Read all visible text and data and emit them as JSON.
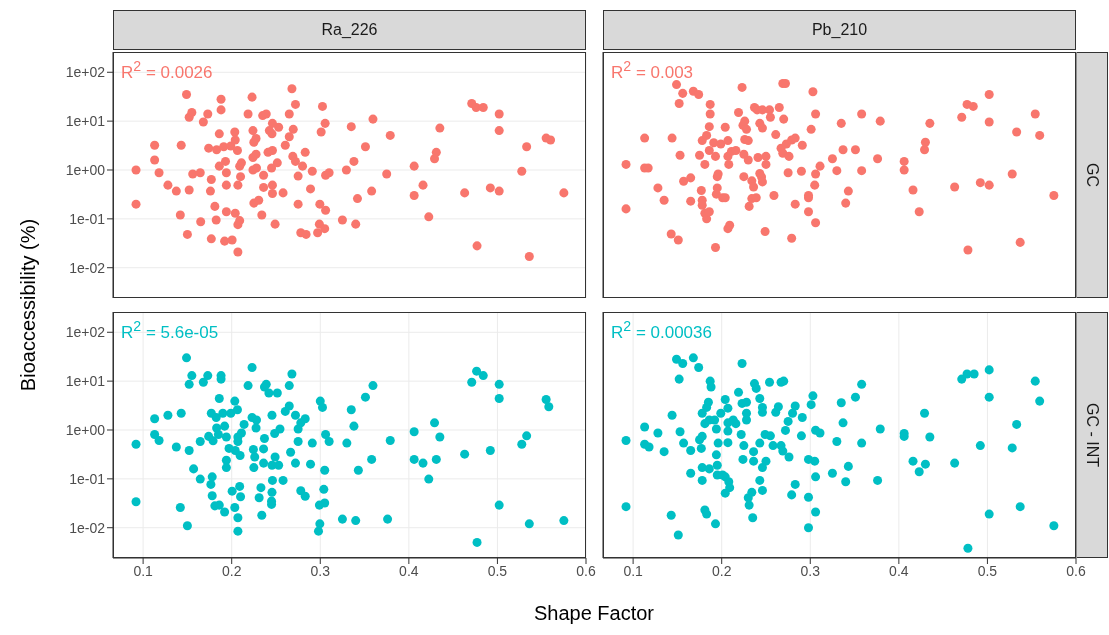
{
  "chart_data": [
    {
      "type": "scatter",
      "title": "Ra_226",
      "ylabel": "Bioaccessibility (%)",
      "annotations": [
        "R$^{2}$ = 0.0026"
      ],
      "color": "#f8766d",
      "marker": "circle",
      "grid": true,
      "log": "y",
      "tick_labels": "y",
      "xlim": [
        0.066,
        0.6
      ],
      "xticks": [
        0.1,
        0.2,
        0.3,
        0.4,
        0.5,
        0.6
      ],
      "ylim": [
        0.0024,
        260
      ],
      "yticks": [
        {
          "value": 0.01,
          "label": "1e-02"
        },
        {
          "value": 0.1,
          "label": "1e-01"
        },
        {
          "value": 1,
          "label": "1e+00"
        },
        {
          "value": 10,
          "label": "1e+01"
        },
        {
          "value": 100,
          "label": "1e+02"
        }
      ],
      "x": [
        0.092,
        0.092,
        0.113,
        0.113,
        0.118,
        0.128,
        0.1375,
        0.142,
        0.143,
        0.149,
        0.15,
        0.152,
        0.152,
        0.155,
        0.156,
        0.1645,
        0.165,
        0.168,
        0.173,
        0.174,
        0.177,
        0.176,
        0.177,
        0.181,
        0.1825,
        0.183,
        0.186,
        0.186,
        0.188,
        0.188,
        0.191,
        0.192,
        0.193,
        0.194,
        0.194,
        0.194,
        0.199,
        0.2005,
        0.2035,
        0.204,
        0.204,
        0.2065,
        0.207,
        0.207,
        0.207,
        0.209,
        0.209,
        0.21,
        0.211,
        0.2185,
        0.223,
        0.224,
        0.224,
        0.225,
        0.2275,
        0.224,
        0.2275,
        0.228,
        0.225,
        0.2305,
        0.234,
        0.235,
        0.236,
        0.236,
        0.239,
        0.241,
        0.2425,
        0.2455,
        0.246,
        0.246,
        0.245,
        0.246,
        0.246,
        0.249,
        0.253,
        0.2515,
        0.258,
        0.2605,
        0.265,
        0.265,
        0.268,
        0.2695,
        0.269,
        0.272,
        0.272,
        0.275,
        0.275,
        0.278,
        0.28,
        0.283,
        0.284,
        0.289,
        0.291,
        0.297,
        0.299,
        0.2995,
        0.301,
        0.3025,
        0.305,
        0.3055,
        0.306,
        0.306,
        0.31,
        0.325,
        0.3295,
        0.335,
        0.338,
        0.34,
        0.342,
        0.351,
        0.358,
        0.3595,
        0.375,
        0.379,
        0.406,
        0.406,
        0.416,
        0.4225,
        0.429,
        0.431,
        0.435,
        0.463,
        0.471,
        0.476,
        0.484,
        0.477,
        0.492,
        0.502,
        0.502,
        0.502,
        0.5275,
        0.533,
        0.536,
        0.555,
        0.56,
        0.575
      ],
      "values": [
        1.0,
        0.2,
        3.2,
        1.6,
        0.88,
        0.49,
        0.37,
        0.12,
        3.2,
        35,
        0.048,
        0.39,
        12,
        15,
        0.83,
        0.88,
        0.087,
        9.6,
        14,
        2.8,
        0.039,
        0.37,
        0.64,
        0.18,
        0.095,
        2.6,
        5.5,
        1.2,
        28,
        17,
        3.0,
        0.035,
        1.5,
        0.88,
        0.49,
        0.14,
        3.1,
        0.037,
        6.0,
        4.1,
        0.13,
        2.5,
        0.49,
        0.021,
        0.076,
        0.092,
        1.2,
        0.73,
        1.4,
        14,
        31,
        1.0,
        6.4,
        3.7,
        4.4,
        1.8,
        2.1,
        1.1,
        0.21,
        0.24,
        0.12,
        13,
        0.78,
        0.44,
        14,
        2.3,
        6.4,
        5.5,
        2.5,
        9.0,
        1.1,
        0.49,
        0.33,
        0.078,
        7.5,
        1.4,
        0.34,
        3.2,
        14,
        4.8,
        46,
        6.8,
        1.9,
        22,
        1.5,
        0.75,
        0.2,
        0.052,
        1.2,
        2.3,
        0.048,
        0.41,
        0.94,
        0.052,
        0.078,
        0.2,
        6.0,
        20,
        0.063,
        9.0,
        0.15,
        0.78,
        0.88,
        0.095,
        1.0,
        7.7,
        1.5,
        0.078,
        0.26,
        3.0,
        0.37,
        11,
        0.83,
        5.1,
        1.2,
        0.3,
        0.49,
        0.11,
        1.7,
        2.3,
        7.2,
        0.34,
        23,
        19,
        19,
        0.028,
        0.43,
        14,
        6.4,
        0.37,
        0.94,
        3.0,
        0.017,
        4.5,
        4.1,
        0.34
      ]
    },
    {
      "type": "scatter",
      "title": "Pb_210",
      "y2label": "GC",
      "annotations": [
        "R$^{2}$ = 0.003"
      ],
      "color": "#f8766d",
      "marker": "circle",
      "grid": true,
      "log": "y",
      "tick_labels": false,
      "xlim": [
        0.066,
        0.6
      ],
      "xticks": [
        0.1,
        0.2,
        0.3,
        0.4,
        0.5,
        0.6
      ],
      "ylim": [
        0.0024,
        260
      ],
      "yticks": [
        {
          "value": 0.01,
          "label": null
        },
        {
          "value": 0.1,
          "label": null
        },
        {
          "value": 1,
          "label": null
        },
        {
          "value": 10,
          "label": null
        },
        {
          "value": 100,
          "label": null
        }
      ],
      "x": [
        0.092,
        0.092,
        0.113,
        0.113,
        0.117,
        0.128,
        0.135,
        0.143,
        0.144,
        0.149,
        0.152,
        0.151,
        0.153,
        0.156,
        0.157,
        0.165,
        0.165,
        0.168,
        0.174,
        0.175,
        0.177,
        0.178,
        0.178,
        0.178,
        0.181,
        0.181,
        0.183,
        0.186,
        0.186,
        0.187,
        0.187,
        0.186,
        0.183,
        0.191,
        0.193,
        0.193,
        0.195,
        0.195,
        0.196,
        0.194,
        0.199,
        0.201,
        0.204,
        0.204,
        0.207,
        0.207,
        0.208,
        0.207,
        0.209,
        0.211,
        0.216,
        0.219,
        0.223,
        0.224,
        0.225,
        0.225,
        0.226,
        0.228,
        0.226,
        0.23,
        0.23,
        0.231,
        0.234,
        0.234,
        0.236,
        0.237,
        0.239,
        0.24,
        0.243,
        0.246,
        0.246,
        0.243,
        0.245,
        0.246,
        0.241,
        0.25,
        0.25,
        0.249,
        0.254,
        0.255,
        0.259,
        0.261,
        0.265,
        0.267,
        0.269,
        0.272,
        0.27,
        0.269,
        0.273,
        0.276,
        0.275,
        0.279,
        0.279,
        0.283,
        0.283,
        0.29,
        0.291,
        0.298,
        0.298,
        0.298,
        0.301,
        0.303,
        0.306,
        0.306,
        0.305,
        0.306,
        0.311,
        0.325,
        0.33,
        0.335,
        0.337,
        0.34,
        0.343,
        0.351,
        0.358,
        0.358,
        0.376,
        0.379,
        0.406,
        0.406,
        0.416,
        0.423,
        0.429,
        0.43,
        0.435,
        0.463,
        0.471,
        0.477,
        0.484,
        0.478,
        0.492,
        0.502,
        0.502,
        0.502,
        0.528,
        0.533,
        0.537,
        0.554,
        0.559,
        0.575
      ],
      "values": [
        1.3,
        0.16,
        4.5,
        1.1,
        1.1,
        0.43,
        0.24,
        0.049,
        4.5,
        56,
        23,
        0.037,
        2.0,
        37,
        0.59,
        0.69,
        0.23,
        41,
        35,
        2.0,
        0.38,
        4.0,
        0.24,
        0.19,
        1.3,
        0.13,
        0.1,
        0.14,
        7.7,
        22,
        14,
        2.5,
        5.1,
        3.6,
        1.9,
        0.026,
        0.43,
        0.73,
        0.83,
        0.32,
        3.4,
        0.27,
        0.27,
        7.5,
        4.0,
        1.9,
        1.3,
        0.063,
        0.074,
        2.4,
        2.5,
        15,
        49,
        8.2,
        2.1,
        0.73,
        10,
        6.8,
        4.2,
        4.0,
        1.6,
        0.18,
        0.26,
        0.6,
        0.45,
        19,
        0.27,
        17,
        9.0,
        7.2,
        17,
        0.85,
        0.72,
        0.57,
        1.8,
        1.9,
        1.3,
        0.055,
        17,
        12,
        0.3,
        5.3,
        19,
        2.8,
        59,
        59,
        11,
        2.2,
        3.4,
        1.9,
        0.88,
        0.04,
        4.1,
        4.5,
        0.2,
        0.94,
        3.2,
        0.14,
        0.27,
        0.3,
        6.8,
        40,
        14,
        0.83,
        0.49,
        0.083,
        1.2,
        1.7,
        0.97,
        9.0,
        2.6,
        0.21,
        0.37,
        2.6,
        14,
        0.97,
        1.7,
        10,
        1.5,
        1.0,
        0.39,
        0.14,
        2.6,
        3.7,
        9.0,
        0.45,
        12,
        22,
        20,
        0.023,
        0.55,
        35,
        9.6,
        0.49,
        0.83,
        6.0,
        0.033,
        14,
        5.1,
        0.3
      ]
    },
    {
      "type": "scatter",
      "xlabel": "Shape Factor",
      "annotations": [
        "R$^{2}$ = 5.6e-05"
      ],
      "color": "#00bfc4",
      "marker": "circle",
      "grid": true,
      "log": "y",
      "xlim": [
        0.066,
        0.6
      ],
      "xticks": [
        0.1,
        0.2,
        0.3,
        0.4,
        0.5,
        0.6
      ],
      "ylim": [
        0.0024,
        260
      ],
      "yticks": [
        {
          "value": 0.01,
          "label": "1e-02"
        },
        {
          "value": 0.1,
          "label": "1e-01"
        },
        {
          "value": 1,
          "label": "1e+00"
        },
        {
          "value": 10,
          "label": "1e+01"
        },
        {
          "value": 100,
          "label": "1e+02"
        }
      ],
      "x": [
        0.092,
        0.092,
        0.113,
        0.113,
        0.118,
        0.128,
        0.1375,
        0.142,
        0.143,
        0.149,
        0.15,
        0.152,
        0.152,
        0.155,
        0.157,
        0.1645,
        0.1645,
        0.168,
        0.173,
        0.174,
        0.1765,
        0.178,
        0.178,
        0.177,
        0.179,
        0.181,
        0.1825,
        0.183,
        0.185,
        0.186,
        0.186,
        0.188,
        0.188,
        0.19,
        0.192,
        0.192,
        0.194,
        0.194,
        0.194,
        0.197,
        0.199,
        0.2005,
        0.2035,
        0.2035,
        0.204,
        0.2065,
        0.207,
        0.207,
        0.207,
        0.207,
        0.209,
        0.2095,
        0.21,
        0.211,
        0.214,
        0.2185,
        0.223,
        0.223,
        0.2245,
        0.225,
        0.226,
        0.2275,
        0.228,
        0.231,
        0.233,
        0.234,
        0.236,
        0.236,
        0.237,
        0.237,
        0.239,
        0.242,
        0.245,
        0.245,
        0.2455,
        0.2455,
        0.2455,
        0.246,
        0.2485,
        0.249,
        0.2515,
        0.2545,
        0.253,
        0.258,
        0.2605,
        0.265,
        0.265,
        0.2665,
        0.268,
        0.272,
        0.272,
        0.275,
        0.275,
        0.278,
        0.278,
        0.283,
        0.283,
        0.289,
        0.291,
        0.298,
        0.2995,
        0.299,
        0.3,
        0.3025,
        0.304,
        0.305,
        0.305,
        0.306,
        0.31,
        0.325,
        0.33,
        0.335,
        0.338,
        0.34,
        0.343,
        0.351,
        0.358,
        0.3595,
        0.376,
        0.379,
        0.406,
        0.406,
        0.416,
        0.4225,
        0.429,
        0.431,
        0.435,
        0.463,
        0.471,
        0.4765,
        0.484,
        0.477,
        0.492,
        0.502,
        0.502,
        0.502,
        0.5275,
        0.533,
        0.536,
        0.555,
        0.558,
        0.575
      ],
      "values": [
        0.51,
        0.034,
        1.7,
        0.81,
        0.61,
        2.0,
        0.45,
        0.026,
        2.2,
        30,
        0.011,
        0.38,
        8.6,
        13,
        0.16,
        0.58,
        0.099,
        9.5,
        13,
        0.74,
        0.077,
        0.11,
        0.045,
        2.2,
        0.6,
        0.028,
        1.8,
        1.1,
        0.81,
        4.4,
        0.029,
        13,
        11,
        2.2,
        1.2,
        0.021,
        0.72,
        0.24,
        0.17,
        0.42,
        2.2,
        0.056,
        3.9,
        0.026,
        0.38,
        2.6,
        0.72,
        0.58,
        0.016,
        0.0085,
        0.07,
        0.3,
        0.043,
        0.87,
        1.3,
        8.1,
        19,
        1.8,
        0.4,
        0.17,
        0.28,
        1.1,
        1.6,
        0.041,
        0.066,
        0.018,
        0.41,
        0.21,
        0.67,
        7.6,
        8.6,
        5.7,
        0.035,
        0.03,
        0.053,
        0.19,
        2.0,
        0.093,
        0.85,
        0.28,
        5.7,
        1.05,
        0.19,
        0.093,
        2.4,
        3.1,
        8.1,
        0.35,
        14,
        0.21,
        2.0,
        0.58,
        1.05,
        0.057,
        1.4,
        1.7,
        0.044,
        0.2,
        0.54,
        0.0085,
        0.012,
        0.029,
        3.9,
        2.9,
        0.061,
        0.032,
        0.15,
        0.81,
        0.58,
        0.015,
        0.54,
        2.6,
        1.2,
        0.014,
        0.15,
        4.7,
        0.25,
        8.1,
        0.015,
        0.61,
        0.92,
        0.25,
        0.21,
        0.099,
        1.4,
        0.25,
        0.72,
        0.32,
        9.5,
        16,
        13,
        0.005,
        0.38,
        8.6,
        4.4,
        0.029,
        0.51,
        0.76,
        0.012,
        4.2,
        3.0,
        0.014
      ]
    },
    {
      "type": "scatter",
      "y2label": "GC - INT",
      "annotations": [
        "R$^{2}$ = 0.00036"
      ],
      "color": "#00bfc4",
      "marker": "circle",
      "grid": true,
      "log": "y",
      "tick_labels": "x",
      "xlim": [
        0.066,
        0.6
      ],
      "xticks": [
        0.1,
        0.2,
        0.3,
        0.4,
        0.5,
        0.6
      ],
      "ylim": [
        0.0024,
        260
      ],
      "yticks": [
        {
          "value": 0.01,
          "label": null
        },
        {
          "value": 0.1,
          "label": null
        },
        {
          "value": 1,
          "label": null
        },
        {
          "value": 10,
          "label": null
        },
        {
          "value": 100,
          "label": null
        }
      ],
      "x": [
        0.092,
        0.092,
        0.113,
        0.113,
        0.118,
        0.128,
        0.135,
        0.143,
        0.144,
        0.149,
        0.156,
        0.152,
        0.151,
        0.153,
        0.157,
        0.165,
        0.165,
        0.168,
        0.174,
        0.175,
        0.177,
        0.178,
        0.178,
        0.178,
        0.181,
        0.183,
        0.181,
        0.178,
        0.183,
        0.186,
        0.185,
        0.187,
        0.188,
        0.186,
        0.192,
        0.193,
        0.194,
        0.194,
        0.195,
        0.195,
        0.196,
        0.199,
        0.201,
        0.204,
        0.204,
        0.204,
        0.207,
        0.207,
        0.207,
        0.208,
        0.209,
        0.207,
        0.213,
        0.216,
        0.219,
        0.223,
        0.223,
        0.224,
        0.222,
        0.225,
        0.228,
        0.228,
        0.228,
        0.23,
        0.231,
        0.234,
        0.235,
        0.237,
        0.239,
        0.236,
        0.236,
        0.243,
        0.243,
        0.243,
        0.246,
        0.246,
        0.246,
        0.246,
        0.25,
        0.249,
        0.254,
        0.255,
        0.258,
        0.261,
        0.264,
        0.267,
        0.267,
        0.27,
        0.269,
        0.272,
        0.276,
        0.275,
        0.279,
        0.28,
        0.283,
        0.283,
        0.29,
        0.291,
        0.298,
        0.298,
        0.298,
        0.301,
        0.303,
        0.305,
        0.306,
        0.306,
        0.306,
        0.311,
        0.325,
        0.33,
        0.335,
        0.337,
        0.34,
        0.343,
        0.351,
        0.358,
        0.358,
        0.376,
        0.379,
        0.406,
        0.406,
        0.416,
        0.423,
        0.429,
        0.43,
        0.435,
        0.463,
        0.471,
        0.477,
        0.485,
        0.478,
        0.492,
        0.502,
        0.502,
        0.502,
        0.528,
        0.533,
        0.537,
        0.554,
        0.559,
        0.575
      ],
      "values": [
        0.61,
        0.027,
        1.15,
        0.51,
        0.45,
        0.87,
        0.36,
        0.018,
        2.0,
        28,
        23,
        11,
        0.0071,
        0.92,
        0.54,
        0.38,
        0.13,
        30,
        19,
        0.63,
        0.42,
        0.74,
        0.17,
        0.093,
        0.023,
        0.019,
        1.35,
        2.2,
        2.9,
        0.16,
        3.7,
        10,
        7.6,
        1.6,
        1.6,
        0.012,
        1.05,
        0.31,
        0.19,
        0.12,
        0.54,
        2.2,
        0.12,
        4.2,
        0.11,
        0.051,
        2.8,
        1.4,
        0.95,
        0.087,
        0.066,
        0.55,
        1.6,
        1.35,
        5.9,
        23,
        3.5,
        0.25,
        0.81,
        0.48,
        3.7,
        1.6,
        2.2,
        0.041,
        0.029,
        0.053,
        0.016,
        8.9,
        7.1,
        0.36,
        0.23,
        4.4,
        0.54,
        0.093,
        0.058,
        2.9,
        2.3,
        0.17,
        0.23,
        0.81,
        9.5,
        0.76,
        0.48,
        2.3,
        3.0,
        0.48,
        9.5,
        10,
        0.37,
        0.98,
        0.28,
        1.5,
        0.047,
        2.2,
        0.077,
        3.1,
        0.76,
        1.8,
        0.25,
        0.042,
        0.01,
        3.3,
        5.0,
        0.23,
        0.99,
        0.11,
        0.021,
        0.87,
        0.13,
        0.58,
        3.6,
        1.4,
        0.087,
        0.18,
        4.7,
        8.6,
        0.54,
        0.093,
        1.05,
        0.85,
        0.74,
        0.23,
        0.14,
        2.2,
        0.2,
        0.72,
        0.21,
        11,
        14,
        14,
        0.0038,
        0.48,
        17,
        4.7,
        0.019,
        0.43,
        1.3,
        0.027,
        10,
        3.9,
        0.011
      ]
    }
  ]
}
